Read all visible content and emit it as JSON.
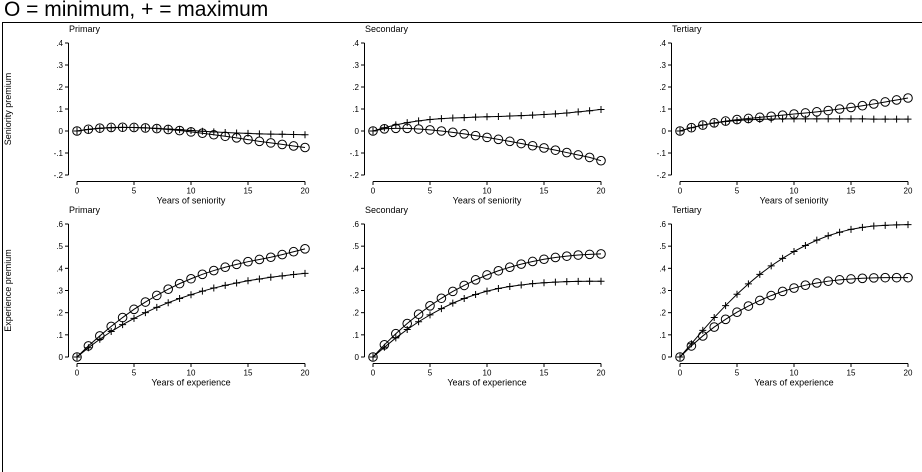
{
  "title": "O = minimum, + = maximum",
  "chart_data": [
    {
      "type": "line",
      "title": "Primary",
      "xlabel": "Years of seniority",
      "ylabel": "Seniority premium",
      "xlim": [
        0,
        20
      ],
      "ylim": [
        -0.2,
        0.4
      ],
      "xticks": [
        "0",
        "5",
        "10",
        "15",
        "20"
      ],
      "yticks": [
        "-.2",
        "-.1",
        "0",
        ".1",
        ".2",
        ".3",
        ".4"
      ],
      "x": [
        0,
        1,
        2,
        3,
        4,
        5,
        6,
        7,
        8,
        9,
        10,
        11,
        12,
        13,
        14,
        15,
        16,
        17,
        18,
        19,
        20
      ],
      "series": [
        {
          "name": "minimum",
          "marker": "circle",
          "values": [
            0,
            0.008,
            0.013,
            0.016,
            0.017,
            0.016,
            0.014,
            0.011,
            0.007,
            0.002,
            -0.004,
            -0.01,
            -0.017,
            -0.024,
            -0.031,
            -0.039,
            -0.047,
            -0.054,
            -0.061,
            -0.068,
            -0.075
          ]
        },
        {
          "name": "maximum",
          "marker": "plus",
          "values": [
            0,
            0.007,
            0.012,
            0.015,
            0.016,
            0.016,
            0.014,
            0.012,
            0.009,
            0.006,
            0.002,
            -0.001,
            -0.004,
            -0.007,
            -0.009,
            -0.011,
            -0.013,
            -0.014,
            -0.015,
            -0.016,
            -0.017
          ]
        }
      ]
    },
    {
      "type": "line",
      "title": "Secondary",
      "xlabel": "Years of seniority",
      "ylabel": "",
      "xlim": [
        0,
        20
      ],
      "ylim": [
        -0.2,
        0.4
      ],
      "xticks": [
        "0",
        "5",
        "10",
        "15",
        "20"
      ],
      "yticks": [
        "-.2",
        "-.1",
        "0",
        ".1",
        ".2",
        ".3",
        ".4"
      ],
      "x": [
        0,
        1,
        2,
        3,
        4,
        5,
        6,
        7,
        8,
        9,
        10,
        11,
        12,
        13,
        14,
        15,
        16,
        17,
        18,
        19,
        20
      ],
      "series": [
        {
          "name": "minimum",
          "marker": "circle",
          "values": [
            0,
            0.01,
            0.012,
            0.012,
            0.009,
            0.005,
            0,
            -0.006,
            -0.013,
            -0.021,
            -0.029,
            -0.038,
            -0.047,
            -0.057,
            -0.067,
            -0.077,
            -0.087,
            -0.098,
            -0.109,
            -0.12,
            -0.135
          ]
        },
        {
          "name": "maximum",
          "marker": "plus",
          "values": [
            0,
            0.015,
            0.028,
            0.038,
            0.046,
            0.052,
            0.056,
            0.059,
            0.061,
            0.063,
            0.065,
            0.066,
            0.068,
            0.07,
            0.072,
            0.075,
            0.078,
            0.082,
            0.087,
            0.092,
            0.098
          ]
        }
      ]
    },
    {
      "type": "line",
      "title": "Tertiary",
      "xlabel": "Years of seniority",
      "ylabel": "",
      "xlim": [
        0,
        20
      ],
      "ylim": [
        -0.2,
        0.4
      ],
      "xticks": [
        "0",
        "5",
        "10",
        "15",
        "20"
      ],
      "yticks": [
        "-.2",
        "-.1",
        "0",
        ".1",
        ".2",
        ".3",
        ".4"
      ],
      "x": [
        0,
        1,
        2,
        3,
        4,
        5,
        6,
        7,
        8,
        9,
        10,
        11,
        12,
        13,
        14,
        15,
        16,
        17,
        18,
        19,
        20
      ],
      "series": [
        {
          "name": "minimum",
          "marker": "circle",
          "values": [
            0,
            0.015,
            0.027,
            0.037,
            0.045,
            0.052,
            0.057,
            0.062,
            0.067,
            0.072,
            0.077,
            0.082,
            0.087,
            0.093,
            0.1,
            0.107,
            0.115,
            0.123,
            0.132,
            0.141,
            0.15
          ]
        },
        {
          "name": "maximum",
          "marker": "plus",
          "values": [
            0,
            0.015,
            0.027,
            0.036,
            0.043,
            0.048,
            0.051,
            0.053,
            0.054,
            0.055,
            0.055,
            0.055,
            0.055,
            0.055,
            0.055,
            0.055,
            0.055,
            0.054,
            0.054,
            0.054,
            0.054
          ]
        }
      ]
    },
    {
      "type": "line",
      "title": "Primary",
      "xlabel": "Years of experience",
      "ylabel": "Experience premium",
      "xlim": [
        0,
        20
      ],
      "ylim": [
        0,
        0.6
      ],
      "xticks": [
        "0",
        "5",
        "10",
        "15",
        "20"
      ],
      "yticks": [
        "0",
        ".1",
        ".2",
        ".3",
        ".4",
        ".5",
        ".6"
      ],
      "x": [
        0,
        1,
        2,
        3,
        4,
        5,
        6,
        7,
        8,
        9,
        10,
        11,
        12,
        13,
        14,
        15,
        16,
        17,
        18,
        19,
        20
      ],
      "series": [
        {
          "name": "minimum",
          "marker": "circle",
          "values": [
            0,
            0.05,
            0.095,
            0.138,
            0.178,
            0.215,
            0.248,
            0.278,
            0.306,
            0.331,
            0.353,
            0.373,
            0.39,
            0.405,
            0.418,
            0.43,
            0.44,
            0.45,
            0.462,
            0.475,
            0.488
          ]
        },
        {
          "name": "maximum",
          "marker": "plus",
          "values": [
            0,
            0.042,
            0.08,
            0.115,
            0.146,
            0.174,
            0.2,
            0.224,
            0.245,
            0.264,
            0.281,
            0.297,
            0.311,
            0.323,
            0.334,
            0.344,
            0.352,
            0.36,
            0.366,
            0.372,
            0.377
          ]
        }
      ]
    },
    {
      "type": "line",
      "title": "Secondary",
      "xlabel": "Years of experience",
      "ylabel": "",
      "xlim": [
        0,
        20
      ],
      "ylim": [
        0,
        0.6
      ],
      "xticks": [
        "0",
        "5",
        "10",
        "15",
        "20"
      ],
      "yticks": [
        "0",
        ".1",
        ".2",
        ".3",
        ".4",
        ".5",
        ".6"
      ],
      "x": [
        0,
        1,
        2,
        3,
        4,
        5,
        6,
        7,
        8,
        9,
        10,
        11,
        12,
        13,
        14,
        15,
        16,
        17,
        18,
        19,
        20
      ],
      "series": [
        {
          "name": "minimum",
          "marker": "circle",
          "values": [
            0,
            0.055,
            0.105,
            0.151,
            0.193,
            0.231,
            0.265,
            0.296,
            0.323,
            0.348,
            0.37,
            0.389,
            0.405,
            0.419,
            0.431,
            0.441,
            0.449,
            0.455,
            0.46,
            0.463,
            0.465
          ]
        },
        {
          "name": "maximum",
          "marker": "plus",
          "values": [
            0,
            0.044,
            0.086,
            0.124,
            0.159,
            0.19,
            0.218,
            0.243,
            0.264,
            0.282,
            0.297,
            0.309,
            0.318,
            0.325,
            0.331,
            0.335,
            0.338,
            0.34,
            0.341,
            0.342,
            0.342
          ]
        }
      ]
    },
    {
      "type": "line",
      "title": "Tertiary",
      "xlabel": "Years of experience",
      "ylabel": "",
      "xlim": [
        0,
        20
      ],
      "ylim": [
        0,
        0.6
      ],
      "xticks": [
        "0",
        "5",
        "10",
        "15",
        "20"
      ],
      "yticks": [
        "0",
        ".1",
        ".2",
        ".3",
        ".4",
        ".5",
        ".6"
      ],
      "x": [
        0,
        1,
        2,
        3,
        4,
        5,
        6,
        7,
        8,
        9,
        10,
        11,
        12,
        13,
        14,
        15,
        16,
        17,
        18,
        19,
        20
      ],
      "series": [
        {
          "name": "minimum",
          "marker": "circle",
          "values": [
            0,
            0.05,
            0.095,
            0.135,
            0.17,
            0.202,
            0.23,
            0.255,
            0.277,
            0.296,
            0.311,
            0.324,
            0.334,
            0.342,
            0.348,
            0.352,
            0.355,
            0.357,
            0.358,
            0.358,
            0.358
          ]
        },
        {
          "name": "maximum",
          "marker": "plus",
          "values": [
            0,
            0.06,
            0.12,
            0.178,
            0.232,
            0.283,
            0.33,
            0.373,
            0.411,
            0.445,
            0.476,
            0.503,
            0.527,
            0.547,
            0.563,
            0.576,
            0.585,
            0.591,
            0.594,
            0.596,
            0.597
          ]
        }
      ]
    }
  ]
}
